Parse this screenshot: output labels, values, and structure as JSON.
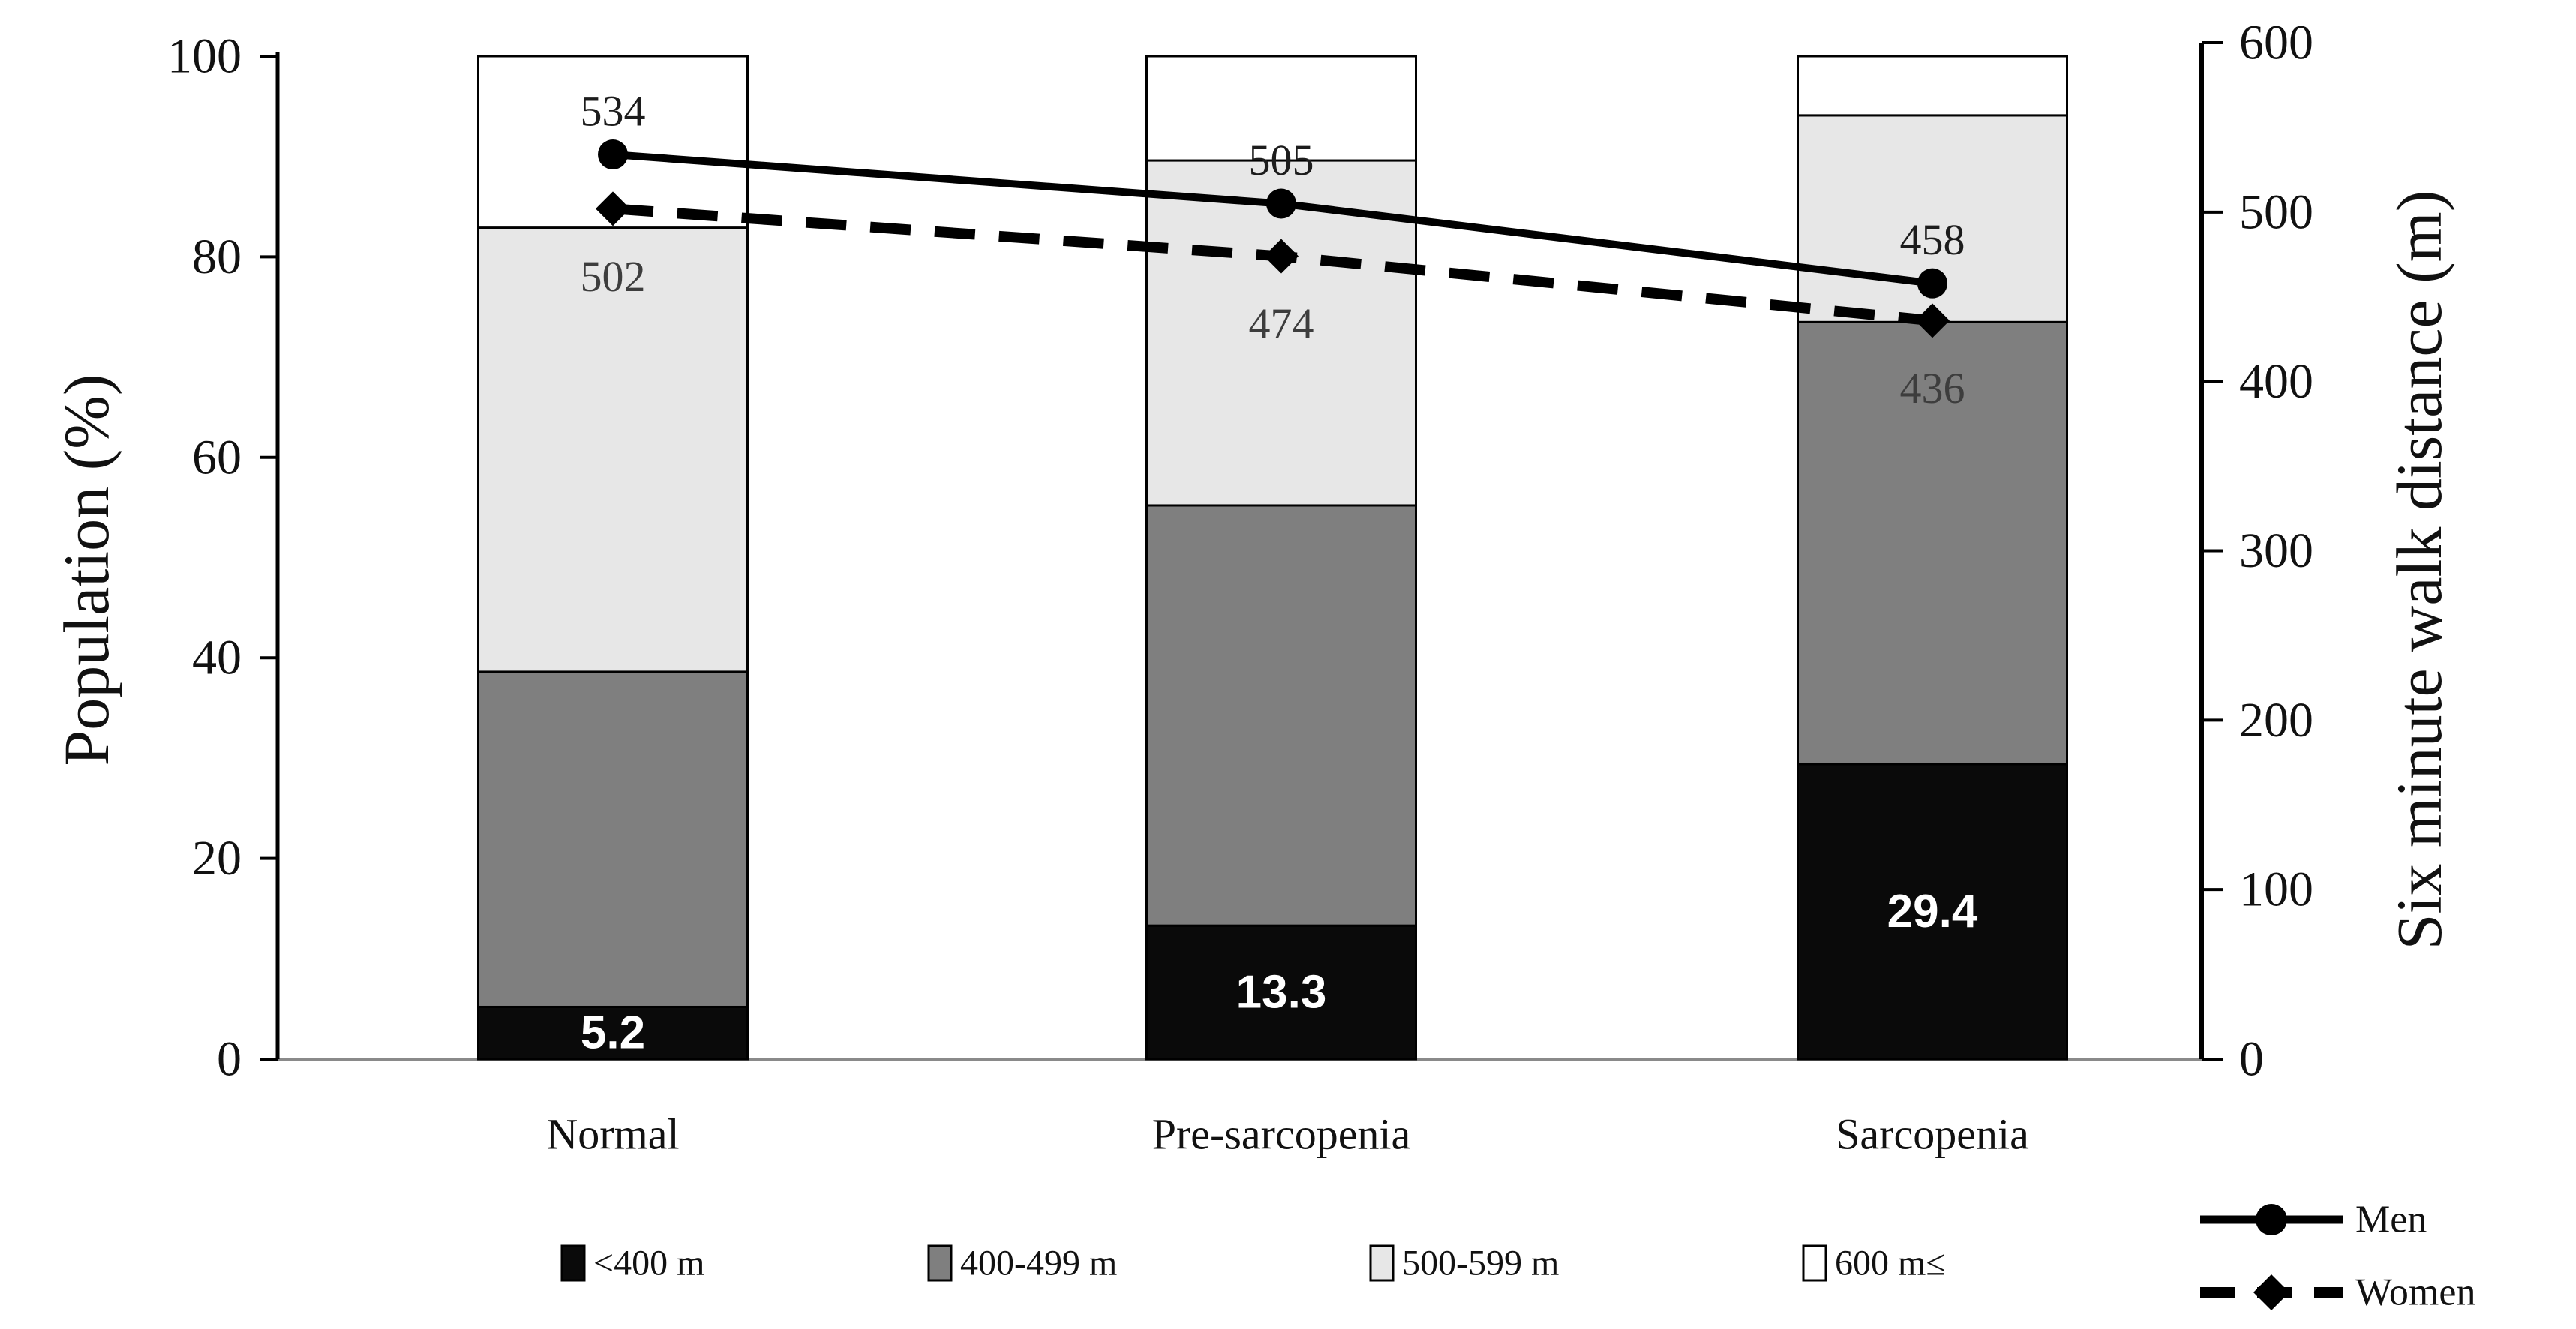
{
  "chart_data": {
    "type": "combo",
    "subtype": "stacked-bar + line",
    "title": "",
    "categories": [
      "Normal",
      "Pre-sarcopenia",
      "Sarcopenia"
    ],
    "bar_unit": "percent of population",
    "bar_series": [
      {
        "name": "<400 m",
        "color": "#0a0a0a",
        "values": [
          5.2,
          13.3,
          29.4
        ],
        "value_labels": [
          "5.2",
          "13.3",
          "29.4"
        ],
        "value_label_color": "#ffffff"
      },
      {
        "name": "400-499 m",
        "color": "#7f7f7f",
        "values": [
          33.4,
          41.9,
          44.1
        ]
      },
      {
        "name": "500-599 m",
        "color": "#e7e7e7",
        "values": [
          44.3,
          34.4,
          20.6
        ]
      },
      {
        "name": "600 m≤",
        "color": "#ffffff",
        "values": [
          17.1,
          10.4,
          5.9
        ]
      }
    ],
    "line_series": [
      {
        "name": "Men",
        "axis": "right",
        "style": "solid",
        "marker": "circle",
        "color": "#000000",
        "values": [
          534,
          505,
          458
        ],
        "point_labels": [
          "534",
          "505",
          "458"
        ],
        "label_color": "#1c1c1c",
        "label_position": "above"
      },
      {
        "name": "Women",
        "axis": "right",
        "style": "dashed",
        "marker": "diamond",
        "color": "#000000",
        "values": [
          502,
          474,
          436
        ],
        "point_labels": [
          "502",
          "474",
          "436"
        ],
        "label_color": "#3d3d3d",
        "label_position": "below"
      }
    ],
    "left_axis": {
      "title": "Population (%)",
      "min": 0,
      "max": 100,
      "ticks": [
        0,
        20,
        40,
        60,
        80,
        100
      ]
    },
    "right_axis": {
      "title": "Six minute walk distance (m)",
      "min": 0,
      "max": 600,
      "ticks": [
        0,
        100,
        200,
        300,
        400,
        500,
        600
      ]
    },
    "grid": false,
    "legend_position": "bottom",
    "legend_bar_items": [
      {
        "label": "<400 m",
        "fill": "#0a0a0a"
      },
      {
        "label": "400-499 m",
        "fill": "#7f7f7f"
      },
      {
        "label": "500-599 m",
        "fill": "#e7e7e7"
      },
      {
        "label": "600 m≤",
        "fill": "#ffffff"
      }
    ],
    "legend_line_items": [
      {
        "label": "Men",
        "style": "solid",
        "marker": "circle"
      },
      {
        "label": "Women",
        "style": "dashed",
        "marker": "diamond"
      }
    ],
    "colors": {
      "axis_line": "#000000",
      "baseline": "#8a8a8a",
      "text": "#111111"
    }
  }
}
